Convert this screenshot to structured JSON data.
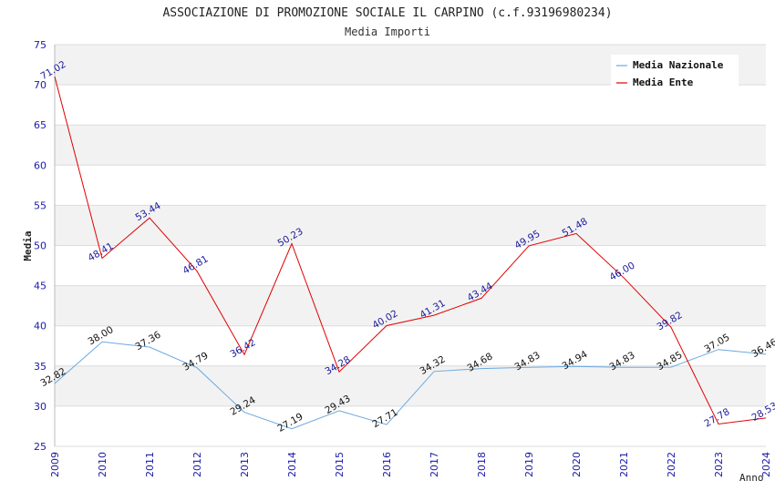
{
  "chart_data": {
    "type": "line",
    "title": "ASSOCIAZIONE DI PROMOZIONE SOCIALE IL CARPINO (c.f.93196980234)",
    "subtitle": "Media Importi",
    "ylabel": "Media",
    "xlabel": "Anno",
    "ylim": [
      25,
      75
    ],
    "yticks": [
      25,
      30,
      35,
      40,
      45,
      50,
      55,
      60,
      65,
      70,
      75
    ],
    "grid": "horizontal bands",
    "legend_position": "top-right",
    "categories": [
      "2009",
      "2010",
      "2011",
      "2012",
      "2013",
      "2014",
      "2015",
      "2016",
      "2017",
      "2018",
      "2019",
      "2020",
      "2021",
      "2022",
      "2023",
      "2024"
    ],
    "series": [
      {
        "name": "Media Nazionale",
        "color": "#6aa8e0",
        "label_color": "#111111",
        "values": [
          32.82,
          38.0,
          37.36,
          34.79,
          29.24,
          27.19,
          29.43,
          27.71,
          34.32,
          34.68,
          34.83,
          34.94,
          34.83,
          34.85,
          37.05,
          36.46
        ],
        "labels": [
          "32.82",
          "38.00",
          "37.36",
          "34.79",
          "29.24",
          "27.19",
          "29.43",
          "27.71",
          "34.32",
          "34.68",
          "34.83",
          "34.94",
          "34.83",
          "34.85",
          "37.05",
          "36.46"
        ]
      },
      {
        "name": "Media Ente",
        "color": "#e00000",
        "label_color": "#1a1a9a",
        "values": [
          71.02,
          48.41,
          53.44,
          46.81,
          36.42,
          50.23,
          34.28,
          40.02,
          41.31,
          43.44,
          49.95,
          51.48,
          46.0,
          39.82,
          27.78,
          28.53
        ],
        "labels": [
          "71.02",
          "48.41",
          "53.44",
          "46.81",
          "36.42",
          "50.23",
          "34.28",
          "40.02",
          "41.31",
          "43.44",
          "49.95",
          "51.48",
          "46.00",
          "39.82",
          "27.78",
          "28.53"
        ]
      }
    ]
  }
}
